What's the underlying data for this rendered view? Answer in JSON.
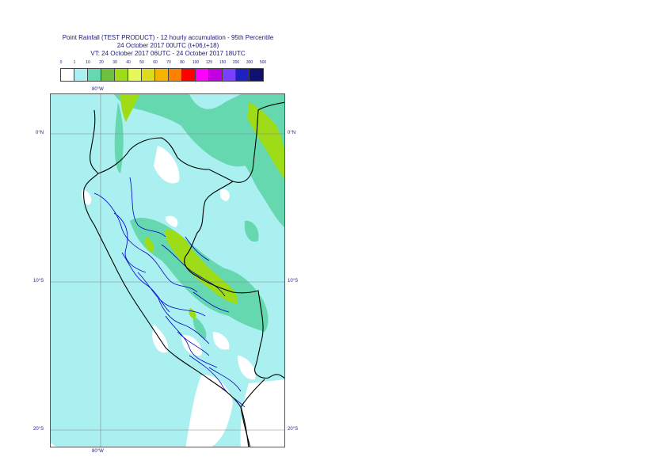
{
  "header": {
    "line1": "Point Rainfall (TEST PRODUCT) - 12 hourly accumulation - 95th Percentile",
    "line2": "24 October 2017 00UTC (t+06,t+18)",
    "line3": "VT: 24 October 2017 06UTC - 24 October 2017 18UTC"
  },
  "legend": {
    "labels": [
      "0",
      "1",
      "10",
      "20",
      "30",
      "40",
      "50",
      "60",
      "70",
      "80",
      "100",
      "125",
      "150",
      "200",
      "300",
      "500"
    ],
    "colors": [
      "#ffffff",
      "#aaf0f0",
      "#66d8b0",
      "#6ec040",
      "#9edc18",
      "#e6f85a",
      "#dcdc1e",
      "#f5b400",
      "#ff8000",
      "#ff0000",
      "#ff00ff",
      "#c000e0",
      "#7a40ff",
      "#2020c0",
      "#101070"
    ]
  },
  "map": {
    "lon_label_top": "80°W",
    "lon_label_bottom": "80°W",
    "lat_labels": [
      {
        "left": "0°N",
        "right": "0°N"
      },
      {
        "left": "10°S",
        "right": "10°S"
      },
      {
        "left": "20°S",
        "right": "20°S"
      }
    ],
    "colors": {
      "ocean_field": "#aaf0f0",
      "moderate": "#66d8b0",
      "heavy": "#9edc18",
      "coast": "#000000",
      "admin": "#0000c8"
    }
  }
}
